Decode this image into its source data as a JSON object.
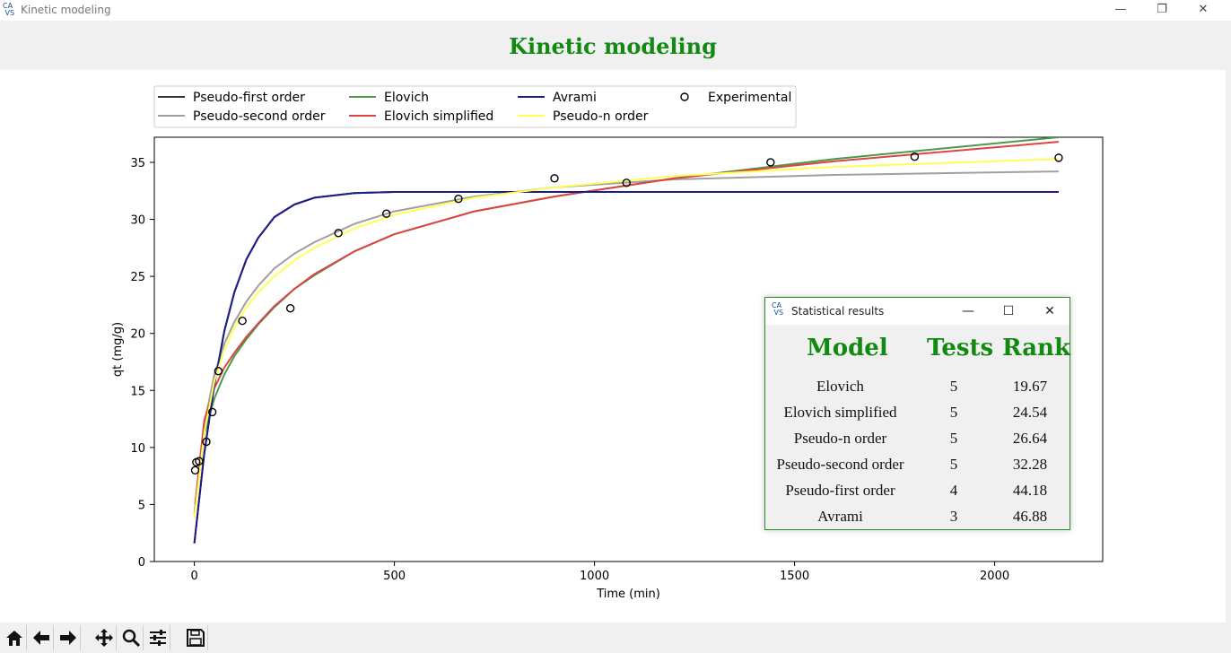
{
  "window": {
    "title": "Kinetic modeling",
    "icon": "app-logo-icon",
    "controls": [
      "minimize-icon",
      "restore-icon",
      "close-icon"
    ]
  },
  "header": {
    "title": "Kinetic modeling",
    "color": "#128a12"
  },
  "chart_data": {
    "type": "line",
    "xlabel": "Time (min)",
    "ylabel": "qt (mg/g)",
    "xlim": [
      -100,
      2270
    ],
    "ylim": [
      0,
      37.2
    ],
    "xticks": [
      0,
      500,
      1000,
      1500,
      2000
    ],
    "yticks": [
      0,
      5,
      10,
      15,
      20,
      25,
      30,
      35
    ],
    "legend_position": "top-left, above plot",
    "series": [
      {
        "name": "Pseudo-first order",
        "color": "#333333",
        "x": [
          0,
          25,
          50,
          75,
          100,
          130,
          160,
          200,
          250,
          300,
          400,
          500,
          700,
          900,
          1200,
          1600,
          2160
        ],
        "y": [
          1.6,
          9.5,
          15.5,
          20.2,
          23.6,
          26.5,
          28.4,
          30.2,
          31.3,
          31.9,
          32.3,
          32.4,
          32.4,
          32.4,
          32.4,
          32.4,
          32.4
        ]
      },
      {
        "name": "Pseudo-second order",
        "color": "#a0a0a0",
        "x": [
          0,
          25,
          50,
          75,
          100,
          130,
          160,
          200,
          250,
          300,
          400,
          500,
          700,
          900,
          1200,
          1600,
          2160
        ],
        "y": [
          4.2,
          12.0,
          16.4,
          19.1,
          21.0,
          22.8,
          24.2,
          25.7,
          27.0,
          28.0,
          29.6,
          30.7,
          32.0,
          32.8,
          33.5,
          33.9,
          34.2
        ]
      },
      {
        "name": "Elovich",
        "color": "#4a9a4a",
        "x": [
          2,
          25,
          50,
          75,
          100,
          130,
          160,
          200,
          250,
          300,
          400,
          500,
          700,
          900,
          1200,
          1600,
          2160
        ],
        "y": [
          4.6,
          11.2,
          14.3,
          16.4,
          18.0,
          19.5,
          20.8,
          22.3,
          23.9,
          25.1,
          27.2,
          28.7,
          30.7,
          32.0,
          33.6,
          35.3,
          37.2
        ]
      },
      {
        "name": "Elovich simplified",
        "color": "#dd4444",
        "x": [
          2,
          25,
          50,
          75,
          100,
          130,
          160,
          200,
          250,
          300,
          400,
          500,
          700,
          900,
          1200,
          1600,
          2160
        ],
        "y": [
          5.0,
          12.4,
          15.2,
          17.0,
          18.3,
          19.7,
          20.9,
          22.4,
          23.9,
          25.2,
          27.2,
          28.7,
          30.7,
          32.0,
          33.6,
          35.1,
          36.8
        ]
      },
      {
        "name": "Avrami",
        "color": "#1c1c8a",
        "x": [
          0,
          25,
          50,
          75,
          100,
          130,
          160,
          200,
          250,
          300,
          400,
          500,
          700,
          900,
          1200,
          1600,
          2160
        ],
        "y": [
          1.6,
          9.5,
          15.5,
          20.2,
          23.6,
          26.5,
          28.4,
          30.2,
          31.3,
          31.9,
          32.3,
          32.4,
          32.4,
          32.4,
          32.4,
          32.4,
          32.4
        ]
      },
      {
        "name": "Pseudo-n order",
        "color": "#ffff55",
        "x": [
          0,
          25,
          50,
          75,
          100,
          130,
          160,
          200,
          250,
          300,
          400,
          500,
          700,
          900,
          1200,
          1600,
          2160
        ],
        "y": [
          3.8,
          11.3,
          15.8,
          18.6,
          20.5,
          22.3,
          23.6,
          25.0,
          26.4,
          27.5,
          29.2,
          30.4,
          31.9,
          32.8,
          33.8,
          34.6,
          35.3
        ]
      },
      {
        "name": "Experimental",
        "marker": "circle",
        "color": "#000000",
        "x": [
          2,
          5,
          12,
          30,
          45,
          60,
          120,
          240,
          360,
          480,
          660,
          900,
          1080,
          1440,
          1800,
          2160
        ],
        "y": [
          8.0,
          8.7,
          8.8,
          10.5,
          13.1,
          16.7,
          21.1,
          22.2,
          28.8,
          30.5,
          31.8,
          33.6,
          33.2,
          35.0,
          35.5,
          35.4
        ]
      }
    ]
  },
  "stats": {
    "title": "Statistical results",
    "headers": {
      "model": "Model",
      "tests": "Tests",
      "rank": "Rank"
    },
    "rows": [
      {
        "model": "Elovich",
        "tests": "5",
        "rank": "19.67"
      },
      {
        "model": "Elovich simplified",
        "tests": "5",
        "rank": "24.54"
      },
      {
        "model": "Pseudo-n order",
        "tests": "5",
        "rank": "26.64"
      },
      {
        "model": "Pseudo-second order",
        "tests": "5",
        "rank": "32.28"
      },
      {
        "model": "Pseudo-first order",
        "tests": "4",
        "rank": "44.18"
      },
      {
        "model": "Avrami",
        "tests": "3",
        "rank": "46.88"
      }
    ]
  },
  "toolbar": {
    "buttons": [
      "home-icon",
      "back-icon",
      "forward-icon",
      "pan-icon",
      "zoom-icon",
      "configure-icon",
      "save-icon"
    ]
  }
}
